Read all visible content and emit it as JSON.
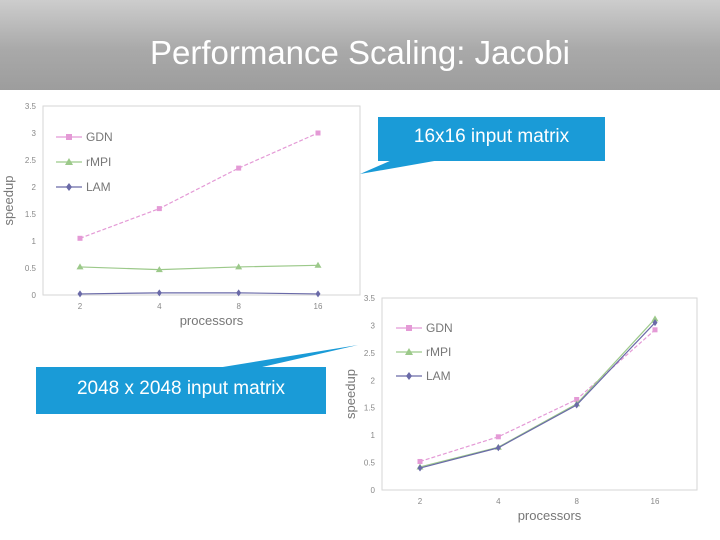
{
  "slide": {
    "title": "Performance Scaling: Jacobi"
  },
  "callouts": {
    "small": "16x16 input matrix",
    "large": "2048 x 2048 input matrix"
  },
  "colors": {
    "GDN": "#e49ad6",
    "rMPI": "#9cc98a",
    "LAM": "#6a6aa8",
    "callout": "#1a9bd7"
  },
  "chart_data": [
    {
      "type": "line",
      "input": "16x16 input matrix",
      "categories": [
        "2",
        "4",
        "8",
        "16"
      ],
      "xlabel": "processors",
      "ylabel": "speedup",
      "ylim": [
        0,
        3.5
      ],
      "yticks": [
        "0",
        "0.5",
        "1",
        "1.5",
        "2",
        "2.5",
        "3",
        "3.5"
      ],
      "grid": false,
      "legend_position": "top-left",
      "series": [
        {
          "name": "GDN",
          "marker": "square",
          "values": [
            1.05,
            1.6,
            2.35,
            3.0
          ]
        },
        {
          "name": "rMPI",
          "marker": "triangle",
          "values": [
            0.52,
            0.47,
            0.52,
            0.55
          ]
        },
        {
          "name": "LAM",
          "marker": "diamond",
          "values": [
            0.02,
            0.04,
            0.04,
            0.02
          ]
        }
      ]
    },
    {
      "type": "line",
      "input": "2048 x 2048 input matrix",
      "categories": [
        "2",
        "4",
        "8",
        "16"
      ],
      "xlabel": "processors",
      "ylabel": "speedup",
      "ylim": [
        0,
        3.5
      ],
      "yticks": [
        "0",
        "0.5",
        "1",
        "1.5",
        "2",
        "2.5",
        "3",
        "3.5"
      ],
      "grid": false,
      "legend_position": "top-left",
      "series": [
        {
          "name": "GDN",
          "marker": "square",
          "values": [
            0.52,
            0.97,
            1.65,
            2.92
          ]
        },
        {
          "name": "rMPI",
          "marker": "triangle",
          "values": [
            0.42,
            0.78,
            1.57,
            3.12
          ]
        },
        {
          "name": "LAM",
          "marker": "diamond",
          "values": [
            0.4,
            0.77,
            1.55,
            3.05
          ]
        }
      ]
    }
  ]
}
